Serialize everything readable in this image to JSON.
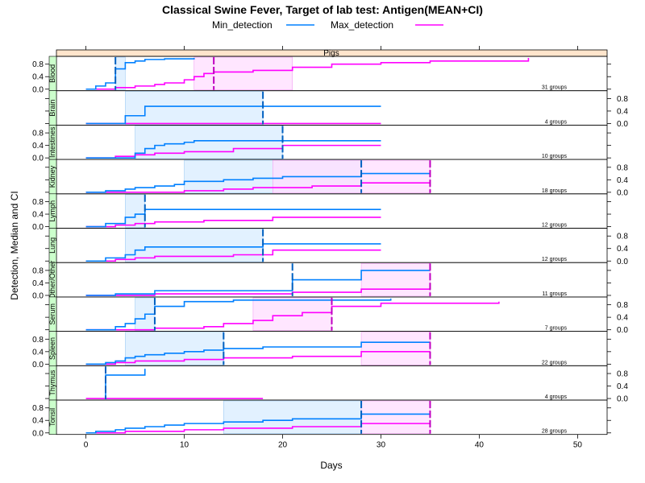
{
  "chart_data": {
    "type": "line",
    "title": "Classical Swine Fever, Target of lab test: Antigen(MEAN+CI)",
    "xlabel": "Days",
    "ylabel": "Detection, Median and CI",
    "strip_label": "Pigs",
    "xlim": [
      -3,
      53
    ],
    "ylim": [
      -0.05,
      1.05
    ],
    "x_ticks": [
      0,
      10,
      20,
      30,
      40,
      50
    ],
    "y_ticks": [
      0.0,
      0.4,
      0.8
    ],
    "y_tick_labels": [
      "0.0",
      "0.4",
      "0.8"
    ],
    "legend": {
      "position": "top",
      "items": [
        {
          "name": "Min_detection",
          "color": "#0080ff"
        },
        {
          "name": "Max_detection",
          "color": "#ff00ff"
        }
      ]
    },
    "colors": {
      "min": "#0080ff",
      "max": "#ff00ff",
      "min_ci_fill": "#ddeeff",
      "max_ci_fill": "#ffddff",
      "strip_bg": "#ffe5cc",
      "panel_label_bg": "#ccffcc"
    },
    "panels": [
      {
        "name": "Blood",
        "groups_label": "31 groups",
        "min_series": [
          [
            0,
            0
          ],
          [
            1,
            0.1
          ],
          [
            2,
            0.2
          ],
          [
            3,
            0.65
          ],
          [
            4,
            0.85
          ],
          [
            5,
            0.9
          ],
          [
            6,
            0.95
          ],
          [
            8,
            0.97
          ],
          [
            11,
            1.0
          ]
        ],
        "min_ci": [
          3,
          4
        ],
        "min_marker": 3,
        "max_series": [
          [
            0,
            0
          ],
          [
            3,
            0.05
          ],
          [
            5,
            0.1
          ],
          [
            7,
            0.15
          ],
          [
            8,
            0.2
          ],
          [
            10,
            0.3
          ],
          [
            11,
            0.4
          ],
          [
            12,
            0.5
          ],
          [
            13,
            0.55
          ],
          [
            17,
            0.6
          ],
          [
            21,
            0.7
          ],
          [
            25,
            0.8
          ],
          [
            30,
            0.85
          ],
          [
            35,
            0.9
          ],
          [
            45,
            1.0
          ]
        ],
        "max_ci": [
          11,
          21
        ],
        "max_marker": 13
      },
      {
        "name": "Brain",
        "groups_label": "4 groups",
        "min_series": [
          [
            0,
            0
          ],
          [
            4,
            0.25
          ],
          [
            6,
            0.55
          ],
          [
            30,
            0.55
          ]
        ],
        "min_ci": [
          4,
          18
        ],
        "min_marker": 18,
        "max_series": [
          [
            0,
            0
          ],
          [
            30,
            0
          ]
        ],
        "max_ci": null,
        "max_marker": null
      },
      {
        "name": "Intestines",
        "groups_label": "10 groups",
        "min_series": [
          [
            0,
            0
          ],
          [
            5,
            0.15
          ],
          [
            6,
            0.3
          ],
          [
            7,
            0.4
          ],
          [
            8,
            0.45
          ],
          [
            10,
            0.5
          ],
          [
            11,
            0.55
          ],
          [
            20,
            0.55
          ],
          [
            30,
            0.55
          ]
        ],
        "min_ci": [
          5,
          20
        ],
        "min_marker": 20,
        "max_series": [
          [
            0,
            0
          ],
          [
            3,
            0.05
          ],
          [
            5,
            0.1
          ],
          [
            7,
            0.15
          ],
          [
            10,
            0.2
          ],
          [
            15,
            0.3
          ],
          [
            20,
            0.4
          ],
          [
            30,
            0.4
          ]
        ],
        "max_ci": null,
        "max_marker": null
      },
      {
        "name": "Kidney",
        "groups_label": "18 groups",
        "min_series": [
          [
            0,
            0
          ],
          [
            2,
            0.05
          ],
          [
            4,
            0.1
          ],
          [
            5,
            0.15
          ],
          [
            7,
            0.2
          ],
          [
            9,
            0.25
          ],
          [
            10,
            0.35
          ],
          [
            14,
            0.4
          ],
          [
            17,
            0.45
          ],
          [
            20,
            0.5
          ],
          [
            28,
            0.6
          ],
          [
            35,
            0.6
          ]
        ],
        "min_ci": [
          10,
          28
        ],
        "min_marker": 28,
        "max_series": [
          [
            0,
            0
          ],
          [
            10,
            0.05
          ],
          [
            14,
            0.1
          ],
          [
            17,
            0.15
          ],
          [
            23,
            0.2
          ],
          [
            28,
            0.3
          ],
          [
            35,
            0.3
          ]
        ],
        "max_ci": [
          19,
          35
        ],
        "max_marker": 35
      },
      {
        "name": "Lymph",
        "groups_label": "12 groups",
        "min_series": [
          [
            0,
            0
          ],
          [
            2,
            0.1
          ],
          [
            4,
            0.3
          ],
          [
            5,
            0.4
          ],
          [
            6,
            0.55
          ],
          [
            30,
            0.55
          ]
        ],
        "min_ci": [
          4,
          6
        ],
        "min_marker": 6,
        "max_series": [
          [
            0,
            0
          ],
          [
            3,
            0.05
          ],
          [
            5,
            0.1
          ],
          [
            7,
            0.15
          ],
          [
            12,
            0.2
          ],
          [
            19,
            0.3
          ],
          [
            30,
            0.3
          ]
        ],
        "max_ci": null,
        "max_marker": null
      },
      {
        "name": "Lung",
        "groups_label": "12 groups",
        "min_series": [
          [
            0,
            0
          ],
          [
            2,
            0.1
          ],
          [
            4,
            0.2
          ],
          [
            5,
            0.35
          ],
          [
            6,
            0.45
          ],
          [
            18,
            0.55
          ],
          [
            30,
            0.55
          ]
        ],
        "min_ci": [
          4,
          18
        ],
        "min_marker": 18,
        "max_series": [
          [
            0,
            0
          ],
          [
            3,
            0.05
          ],
          [
            5,
            0.1
          ],
          [
            7,
            0.15
          ],
          [
            15,
            0.2
          ],
          [
            19,
            0.35
          ],
          [
            30,
            0.35
          ]
        ],
        "max_ci": null,
        "max_marker": null
      },
      {
        "name": "Other/Other",
        "groups_label": "11 groups",
        "min_series": [
          [
            0,
            0
          ],
          [
            3,
            0.05
          ],
          [
            7,
            0.15
          ],
          [
            21,
            0.5
          ],
          [
            28,
            0.8
          ],
          [
            35,
            0.8
          ]
        ],
        "min_ci": null,
        "min_marker": 21,
        "max_series": [
          [
            0,
            0
          ],
          [
            7,
            0.05
          ],
          [
            21,
            0.1
          ],
          [
            28,
            0.2
          ],
          [
            35,
            0.2
          ]
        ],
        "max_ci": [
          28,
          35
        ],
        "max_marker": 35
      },
      {
        "name": "Serum",
        "groups_label": "7 groups",
        "min_series": [
          [
            0,
            0
          ],
          [
            3,
            0.1
          ],
          [
            4,
            0.2
          ],
          [
            5,
            0.35
          ],
          [
            6,
            0.5
          ],
          [
            7,
            0.75
          ],
          [
            10,
            0.9
          ],
          [
            15,
            0.95
          ],
          [
            31,
            1.0
          ]
        ],
        "min_ci": [
          5,
          7
        ],
        "min_marker": 7,
        "max_series": [
          [
            0,
            0
          ],
          [
            7,
            0.05
          ],
          [
            12,
            0.1
          ],
          [
            14,
            0.2
          ],
          [
            17,
            0.3
          ],
          [
            19,
            0.45
          ],
          [
            22,
            0.55
          ],
          [
            25,
            0.75
          ],
          [
            30,
            0.85
          ],
          [
            42,
            0.9
          ]
        ],
        "max_ci": [
          17,
          25
        ],
        "max_marker": 25
      },
      {
        "name": "Spleen",
        "groups_label": "22 groups",
        "min_series": [
          [
            0,
            0
          ],
          [
            2,
            0.05
          ],
          [
            3,
            0.1
          ],
          [
            4,
            0.2
          ],
          [
            5,
            0.25
          ],
          [
            6,
            0.3
          ],
          [
            8,
            0.35
          ],
          [
            10,
            0.4
          ],
          [
            12,
            0.45
          ],
          [
            14,
            0.5
          ],
          [
            18,
            0.55
          ],
          [
            28,
            0.7
          ],
          [
            35,
            0.7
          ]
        ],
        "min_ci": [
          4,
          14
        ],
        "min_marker": 14,
        "max_series": [
          [
            0,
            0
          ],
          [
            3,
            0.05
          ],
          [
            5,
            0.1
          ],
          [
            10,
            0.15
          ],
          [
            14,
            0.2
          ],
          [
            21,
            0.25
          ],
          [
            28,
            0.4
          ],
          [
            35,
            0.4
          ]
        ],
        "max_ci": [
          28,
          35
        ],
        "max_marker": 35
      },
      {
        "name": "Thymus",
        "groups_label": "4 groups",
        "min_series": [
          [
            2,
            0
          ],
          [
            2,
            0.75
          ],
          [
            6,
            0.75
          ],
          [
            6,
            0.95
          ]
        ],
        "min_ci": null,
        "min_marker": 2,
        "max_series": [
          [
            0,
            0
          ],
          [
            18,
            0
          ]
        ],
        "max_ci": null,
        "max_marker": null
      },
      {
        "name": "Tonsil",
        "groups_label": "28 groups",
        "min_series": [
          [
            0,
            0
          ],
          [
            1,
            0.05
          ],
          [
            3,
            0.1
          ],
          [
            4,
            0.15
          ],
          [
            6,
            0.2
          ],
          [
            8,
            0.25
          ],
          [
            10,
            0.3
          ],
          [
            14,
            0.35
          ],
          [
            18,
            0.4
          ],
          [
            21,
            0.45
          ],
          [
            28,
            0.6
          ],
          [
            35,
            0.6
          ]
        ],
        "min_ci": [
          14,
          28
        ],
        "min_marker": 28,
        "max_series": [
          [
            0,
            0
          ],
          [
            4,
            0.05
          ],
          [
            10,
            0.1
          ],
          [
            14,
            0.15
          ],
          [
            21,
            0.2
          ],
          [
            28,
            0.3
          ],
          [
            35,
            0.3
          ]
        ],
        "max_ci": [
          28,
          35
        ],
        "max_marker": 35
      }
    ]
  }
}
